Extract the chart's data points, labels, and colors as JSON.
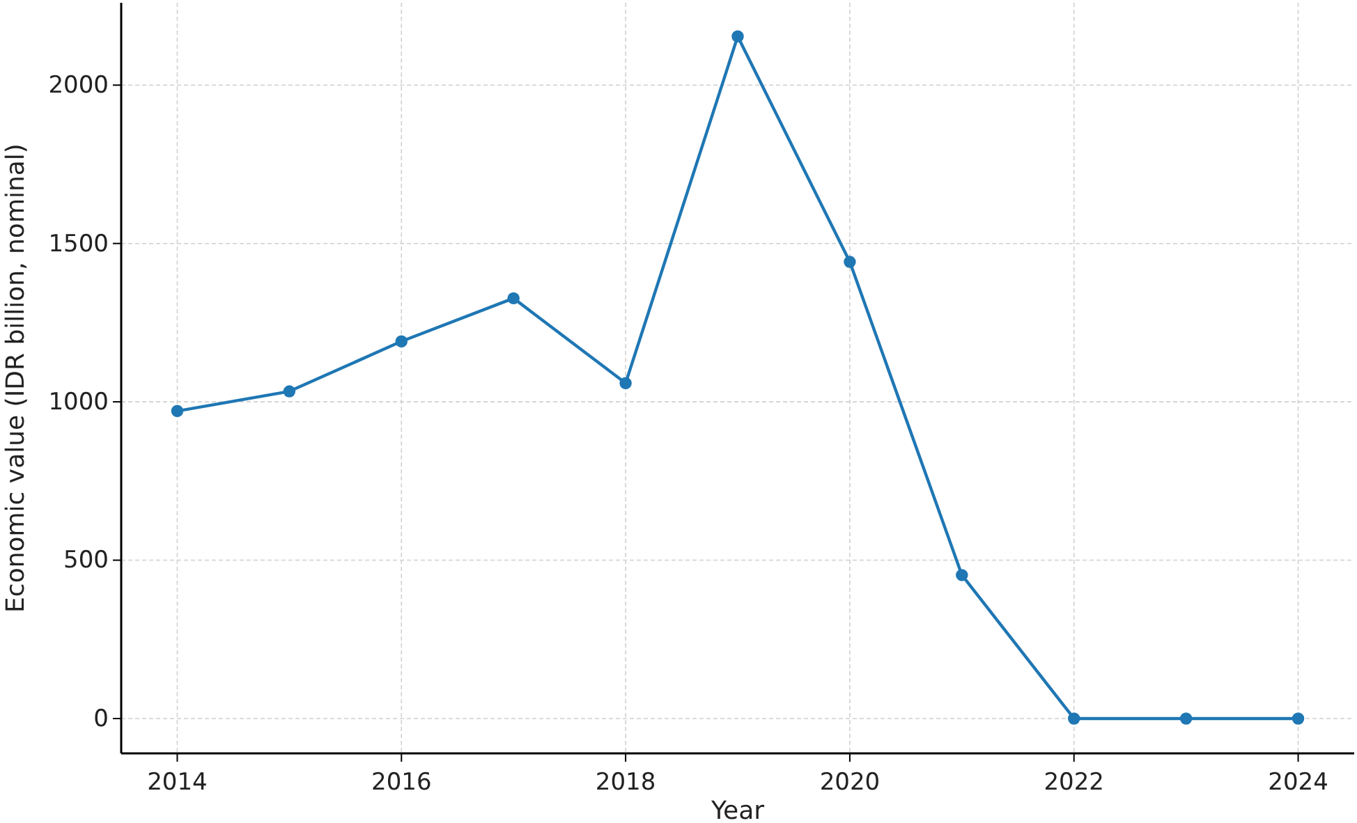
{
  "chart_data": {
    "type": "line",
    "xlabel": "Year",
    "ylabel": "Economic value (IDR billion, nominal)",
    "x": [
      2014,
      2015,
      2016,
      2017,
      2018,
      2019,
      2020,
      2021,
      2022,
      2023,
      2024
    ],
    "series": [
      {
        "color": "#1f77b4",
        "values": [
          971,
          1033,
          1191,
          1327,
          1059,
          2154,
          1442,
          453,
          0,
          0,
          0
        ]
      }
    ],
    "xlim": [
      2013.5,
      2024.5
    ],
    "xticks": [
      2014,
      2016,
      2018,
      2020,
      2022,
      2024
    ],
    "ylim": [
      -110,
      2260
    ],
    "yticks": [
      0,
      500,
      1000,
      1500,
      2000
    ],
    "grid": true,
    "marker": "circle",
    "line_style": "solid"
  }
}
